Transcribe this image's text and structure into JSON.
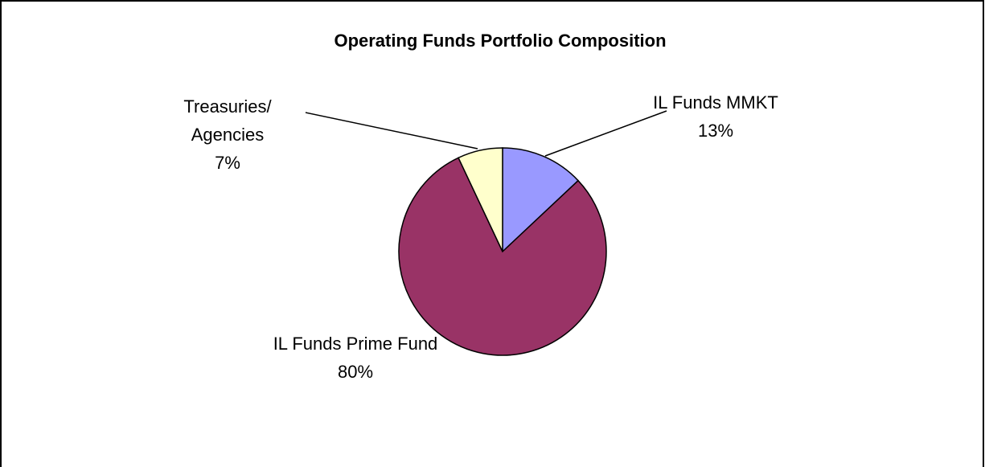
{
  "chart_data": {
    "type": "pie",
    "title": "Operating Funds Portfolio Composition",
    "categories": [
      "IL Funds MMKT",
      "IL Funds Prime Fund",
      "Treasuries/ Agencies"
    ],
    "values": [
      13,
      80,
      7
    ],
    "value_labels": [
      "13%",
      "80%",
      "7%"
    ],
    "colors": [
      "#9999ff",
      "#993366",
      "#ffffcc"
    ]
  }
}
